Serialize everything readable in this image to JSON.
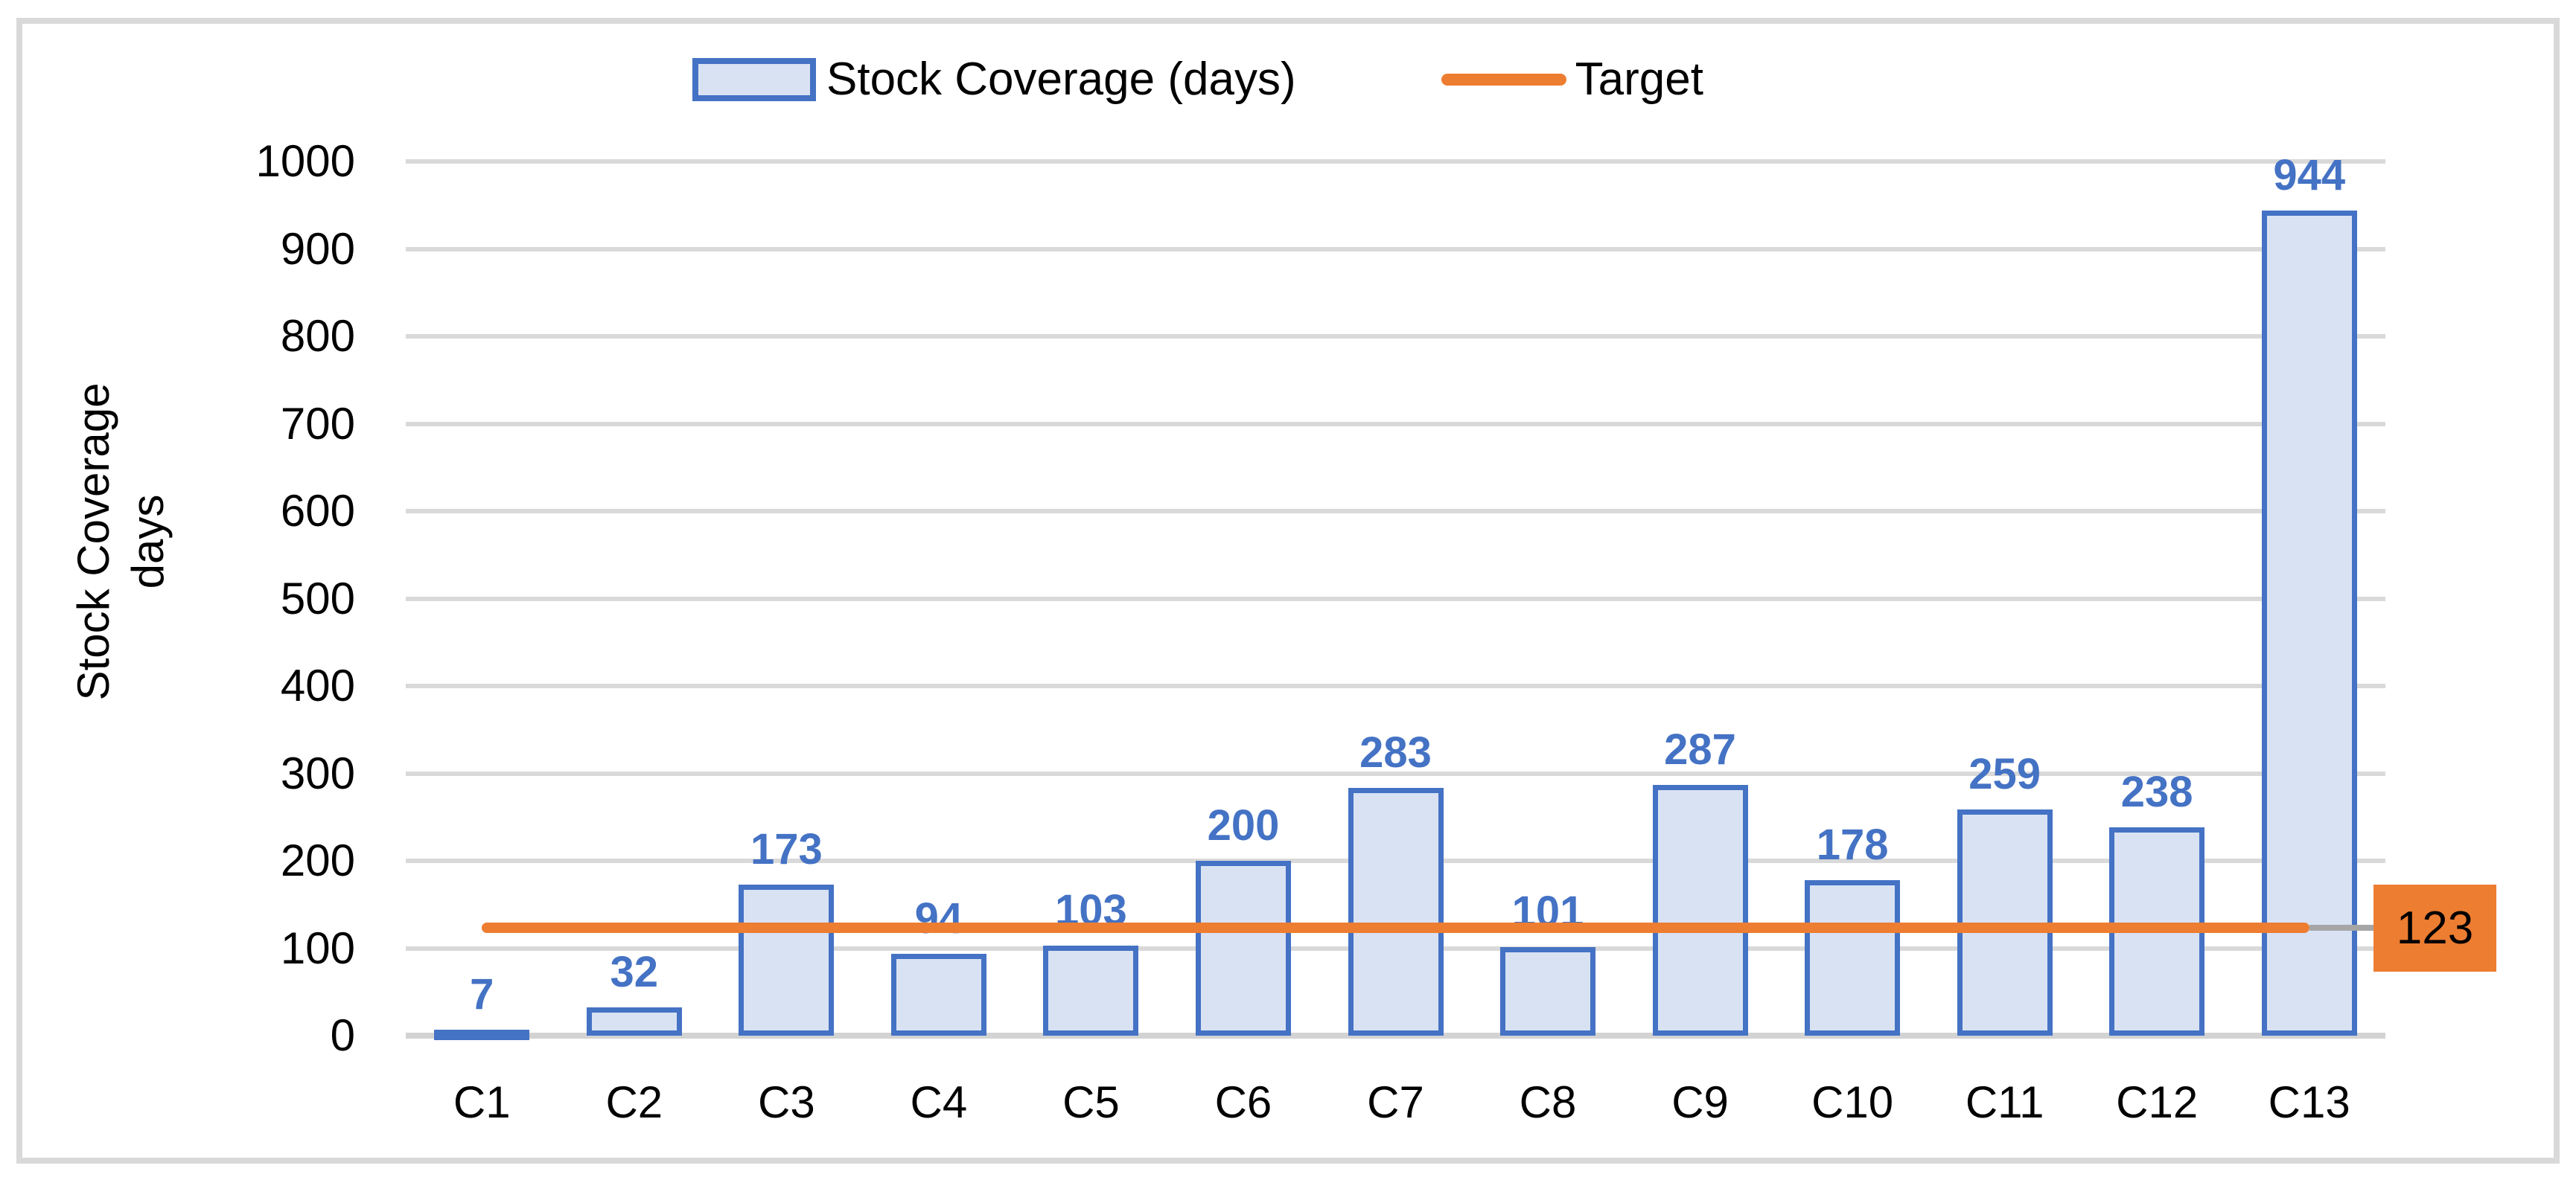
{
  "chart_data": {
    "type": "bar",
    "title": "",
    "categories": [
      "C1",
      "C2",
      "C3",
      "C4",
      "C5",
      "C6",
      "C7",
      "C8",
      "C9",
      "C10",
      "C11",
      "C12",
      "C13"
    ],
    "series": [
      {
        "name": "Stock Coverage (days)",
        "type": "bar",
        "values": [
          7,
          32,
          173,
          94,
          103,
          200,
          283,
          101,
          287,
          178,
          259,
          238,
          944
        ]
      },
      {
        "name": "Target",
        "type": "line",
        "value": 123
      }
    ],
    "data_labels": [
      "7",
      "32",
      "173",
      "94",
      "103",
      "200",
      "283",
      "101",
      "287",
      "178",
      "259",
      "238",
      "944"
    ],
    "target_label": "123",
    "ylabel_line1": "Stock Coverage",
    "ylabel_line2": "days",
    "y_ticks": [
      0,
      100,
      200,
      300,
      400,
      500,
      600,
      700,
      800,
      900,
      1000
    ],
    "ylim": [
      0,
      1000
    ],
    "grid": true,
    "legend_position": "top",
    "colors": {
      "bar_fill": "#D9E2F3",
      "bar_border": "#4472C4",
      "data_label": "#4472C4",
      "target_line": "#ED7D31",
      "target_box_fill": "#ED7D31",
      "target_box_text": "#000000",
      "gridline": "#D9D9D9",
      "axis_text": "#000000",
      "leader_line": "#A6A6A6",
      "frame_border": "#D9D9D9"
    }
  },
  "legend": {
    "bar_label": "Stock Coverage (days)",
    "line_label": "Target"
  }
}
